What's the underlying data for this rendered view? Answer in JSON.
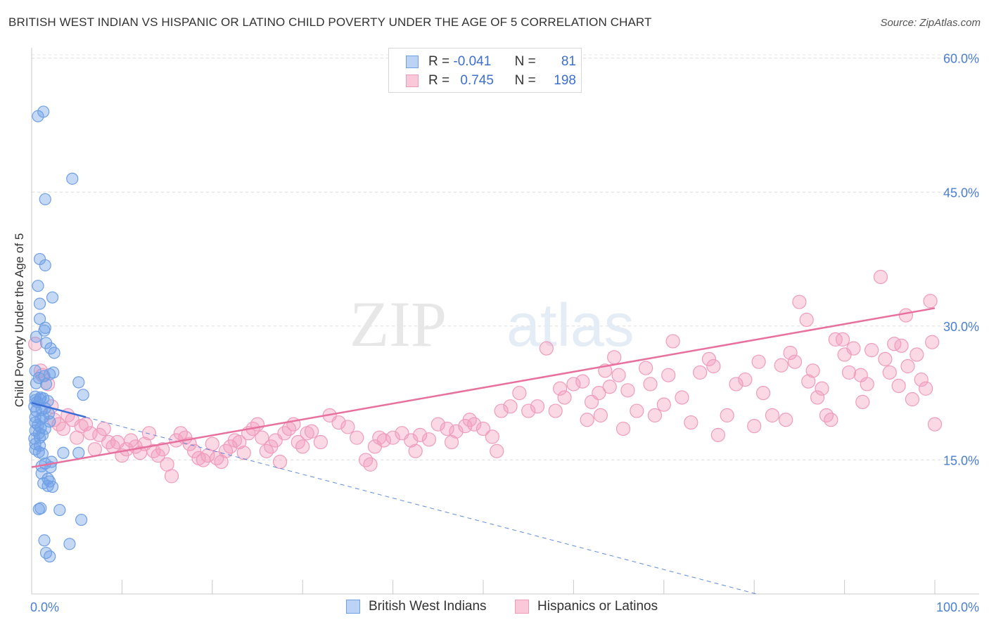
{
  "title": "BRITISH WEST INDIAN VS HISPANIC OR LATINO CHILD POVERTY UNDER THE AGE OF 5 CORRELATION CHART",
  "source": "Source: ZipAtlas.com",
  "watermark": {
    "zip": "ZIP",
    "atlas": "atlas"
  },
  "legend": {
    "series1": {
      "r_label": "R =",
      "r_value": "-0.041",
      "n_label": "N =",
      "n_value": "81"
    },
    "series2": {
      "r_label": "R =",
      "r_value": "0.745",
      "n_label": "N =",
      "n_value": "198"
    }
  },
  "chart_data": {
    "type": "scatter",
    "title": "BRITISH WEST INDIAN VS HISPANIC OR LATINO CHILD POVERTY UNDER THE AGE OF 5 CORRELATION CHART",
    "xlabel": "",
    "ylabel": "Child Poverty Under the Age of 5",
    "xlim": [
      0,
      100
    ],
    "ylim": [
      0,
      61
    ],
    "x_tick_labels": [
      "0.0%",
      "100.0%"
    ],
    "y_ticks": [
      15,
      30,
      45,
      60
    ],
    "y_tick_labels": [
      "15.0%",
      "30.0%",
      "45.0%",
      "60.0%"
    ],
    "grid": "horizontal dashed",
    "legend_position": "top-center",
    "colors": {
      "series1": "#6f9fe6",
      "series2": "#f19bbb",
      "trend1": "#3a6fd8",
      "trend2": "#e8709e",
      "axis_labels": "#4a7fd0"
    },
    "series": [
      {
        "name": "British West Indians",
        "trend": {
          "x0": 0,
          "y0": 21.4,
          "x1": 6,
          "y1": 19.8,
          "dashed_to": [
            100,
            -5.8
          ]
        },
        "points": [
          [
            0.7,
            53.5
          ],
          [
            1.3,
            54
          ],
          [
            4.5,
            46.5
          ],
          [
            1.5,
            44.2
          ],
          [
            0.9,
            37.5
          ],
          [
            1.5,
            36.8
          ],
          [
            0.7,
            34.5
          ],
          [
            2.3,
            33.2
          ],
          [
            0.9,
            32.5
          ],
          [
            0.9,
            30.8
          ],
          [
            1.5,
            29.8
          ],
          [
            1.4,
            29.5
          ],
          [
            0.5,
            28.8
          ],
          [
            1.6,
            28.1
          ],
          [
            2.1,
            27.5
          ],
          [
            2.5,
            27
          ],
          [
            0.4,
            25
          ],
          [
            2.4,
            24.8
          ],
          [
            2,
            24.6
          ],
          [
            0.8,
            24.2
          ],
          [
            1.4,
            24.4
          ],
          [
            1.6,
            23.5
          ],
          [
            0.5,
            23.6
          ],
          [
            5.2,
            23.7
          ],
          [
            0.4,
            22.1
          ],
          [
            1,
            22
          ],
          [
            5.7,
            22.3
          ],
          [
            0.4,
            21.7
          ],
          [
            0.6,
            21.5
          ],
          [
            0.9,
            21.8
          ],
          [
            1.3,
            21.9
          ],
          [
            1.8,
            21.6
          ],
          [
            0.3,
            21
          ],
          [
            0.5,
            20.5
          ],
          [
            1.1,
            20.6
          ],
          [
            1.5,
            20.8
          ],
          [
            1.9,
            20.2
          ],
          [
            0.4,
            19.8
          ],
          [
            1,
            19.6
          ],
          [
            1.3,
            19.8
          ],
          [
            2,
            19.3
          ],
          [
            0.4,
            19.2
          ],
          [
            0.7,
            18.9
          ],
          [
            1,
            18.6
          ],
          [
            1.5,
            18.5
          ],
          [
            0.4,
            18.3
          ],
          [
            0.8,
            18
          ],
          [
            1.2,
            17.8
          ],
          [
            0.3,
            17.4
          ],
          [
            0.9,
            17.5
          ],
          [
            0.4,
            16.8
          ],
          [
            0.9,
            16.6
          ],
          [
            0.4,
            16.2
          ],
          [
            0.8,
            15.9
          ],
          [
            1.2,
            15.7
          ],
          [
            3.5,
            15.8
          ],
          [
            5.2,
            15.8
          ],
          [
            2.2,
            14.8
          ],
          [
            1.5,
            14.6
          ],
          [
            1.1,
            14.3
          ],
          [
            2.1,
            14.2
          ],
          [
            1.1,
            13.5
          ],
          [
            1.8,
            12.9
          ],
          [
            2,
            12.6
          ],
          [
            1.3,
            12.4
          ],
          [
            1.8,
            12.1
          ],
          [
            2.3,
            12
          ],
          [
            1,
            9.6
          ],
          [
            3.1,
            9.4
          ],
          [
            0.8,
            9.5
          ],
          [
            5.5,
            8.3
          ],
          [
            1.4,
            6
          ],
          [
            4.2,
            5.6
          ],
          [
            1.6,
            4.6
          ],
          [
            2,
            4.2
          ]
        ]
      },
      {
        "name": "Hispanics or Latinos",
        "trend": {
          "x0": 0,
          "y0": 14.2,
          "x1": 100,
          "y1": 32
        },
        "points": [
          [
            0.4,
            28
          ],
          [
            1,
            25
          ],
          [
            1.2,
            24.5
          ],
          [
            1.8,
            23.5
          ],
          [
            2.2,
            21
          ],
          [
            2.5,
            19.5
          ],
          [
            3,
            19
          ],
          [
            3.5,
            18.5
          ],
          [
            4,
            20
          ],
          [
            4.5,
            19.5
          ],
          [
            5,
            17.5
          ],
          [
            5.5,
            18.8
          ],
          [
            6,
            19
          ],
          [
            6.5,
            18
          ],
          [
            7,
            16.2
          ],
          [
            7.5,
            17.8
          ],
          [
            8,
            18.5
          ],
          [
            8.5,
            17
          ],
          [
            9,
            16.5
          ],
          [
            9.5,
            17
          ],
          [
            10,
            15.5
          ],
          [
            10.5,
            16.2
          ],
          [
            11,
            17.2
          ],
          [
            11.5,
            16.5
          ],
          [
            12,
            15.8
          ],
          [
            12.5,
            16.8
          ],
          [
            13,
            18
          ],
          [
            13.5,
            16
          ],
          [
            14,
            15.5
          ],
          [
            14.5,
            16.2
          ],
          [
            15,
            14.5
          ],
          [
            15.5,
            13.2
          ],
          [
            16,
            17.2
          ],
          [
            16.5,
            18
          ],
          [
            17,
            17.5
          ],
          [
            17.5,
            16.8
          ],
          [
            18,
            16
          ],
          [
            18.5,
            15.2
          ],
          [
            19,
            15
          ],
          [
            19.5,
            15.5
          ],
          [
            20,
            16.8
          ],
          [
            20.5,
            15.2
          ],
          [
            21,
            14.8
          ],
          [
            21.5,
            16
          ],
          [
            22,
            16.5
          ],
          [
            22.5,
            17.2
          ],
          [
            23,
            17
          ],
          [
            23.5,
            15.8
          ],
          [
            24,
            18
          ],
          [
            24.5,
            18.5
          ],
          [
            25,
            19
          ],
          [
            25.5,
            17.5
          ],
          [
            26,
            16
          ],
          [
            26.5,
            16.5
          ],
          [
            27,
            17.2
          ],
          [
            27.5,
            14.8
          ],
          [
            28,
            18
          ],
          [
            28.5,
            18.5
          ],
          [
            29,
            19
          ],
          [
            29.5,
            17
          ],
          [
            30,
            16.5
          ],
          [
            30.5,
            18
          ],
          [
            31,
            18.2
          ],
          [
            32,
            17
          ],
          [
            33,
            20
          ],
          [
            34,
            19.2
          ],
          [
            35,
            18.7
          ],
          [
            36,
            17.5
          ],
          [
            37,
            15
          ],
          [
            37.5,
            14.5
          ],
          [
            38,
            16.5
          ],
          [
            38.5,
            17.5
          ],
          [
            39,
            17.2
          ],
          [
            40,
            17.5
          ],
          [
            41,
            18
          ],
          [
            42,
            17.2
          ],
          [
            42.5,
            16
          ],
          [
            43,
            17.8
          ],
          [
            44,
            17.3
          ],
          [
            45,
            19
          ],
          [
            46,
            18.5
          ],
          [
            46.5,
            17
          ],
          [
            47,
            18.2
          ],
          [
            48,
            18.8
          ],
          [
            48.5,
            19.5
          ],
          [
            49,
            19
          ],
          [
            50,
            18.5
          ],
          [
            51,
            17.6
          ],
          [
            51.5,
            16
          ],
          [
            52,
            20.5
          ],
          [
            53,
            21
          ],
          [
            54,
            22.5
          ],
          [
            55,
            20.5
          ],
          [
            56,
            21
          ],
          [
            57,
            27.5
          ],
          [
            58,
            20.5
          ],
          [
            58.5,
            23
          ],
          [
            59,
            22
          ],
          [
            60,
            23.5
          ],
          [
            61,
            23.8
          ],
          [
            61.5,
            19.5
          ],
          [
            62,
            21.5
          ],
          [
            62.8,
            22.5
          ],
          [
            63,
            20
          ],
          [
            63.5,
            25
          ],
          [
            64,
            23.2
          ],
          [
            64.5,
            26.5
          ],
          [
            65,
            24.5
          ],
          [
            65.5,
            18.5
          ],
          [
            66,
            22.8
          ],
          [
            67,
            20.5
          ],
          [
            68,
            25.3
          ],
          [
            68.5,
            23.5
          ],
          [
            69,
            20
          ],
          [
            70,
            21.2
          ],
          [
            70.5,
            24.5
          ],
          [
            71,
            28.3
          ],
          [
            72,
            22
          ],
          [
            73,
            19.2
          ],
          [
            74,
            24.8
          ],
          [
            75,
            26.3
          ],
          [
            75.5,
            25.5
          ],
          [
            76,
            17.8
          ],
          [
            77,
            20
          ],
          [
            78,
            23.5
          ],
          [
            79,
            24
          ],
          [
            80,
            18.8
          ],
          [
            80.5,
            26
          ],
          [
            81,
            22.5
          ],
          [
            82,
            20
          ],
          [
            83,
            25.6
          ],
          [
            83.5,
            19.5
          ],
          [
            84,
            27
          ],
          [
            84.5,
            26
          ],
          [
            85,
            32.7
          ],
          [
            85.8,
            30.7
          ],
          [
            86,
            23.8
          ],
          [
            86.5,
            25
          ],
          [
            87,
            22
          ],
          [
            87.5,
            23
          ],
          [
            88,
            20
          ],
          [
            88.5,
            19.5
          ],
          [
            89,
            28.5
          ],
          [
            89.8,
            28.5
          ],
          [
            90,
            26.8
          ],
          [
            90.5,
            24.8
          ],
          [
            91,
            27.5
          ],
          [
            91.8,
            24.5
          ],
          [
            92,
            21.5
          ],
          [
            92.5,
            23.5
          ],
          [
            93,
            27.3
          ],
          [
            94,
            35.5
          ],
          [
            94.5,
            26.3
          ],
          [
            95,
            24.8
          ],
          [
            95.5,
            28
          ],
          [
            96,
            23.3
          ],
          [
            96.3,
            27.8
          ],
          [
            96.8,
            31.2
          ],
          [
            97,
            25.5
          ],
          [
            97.5,
            21.8
          ],
          [
            98,
            26.8
          ],
          [
            98.5,
            24
          ],
          [
            99,
            23
          ],
          [
            99.5,
            32.8
          ],
          [
            99.7,
            28.2
          ],
          [
            100,
            19
          ]
        ]
      }
    ]
  },
  "bottom_legend": {
    "series1": "British West Indians",
    "series2": "Hispanics or Latinos"
  }
}
